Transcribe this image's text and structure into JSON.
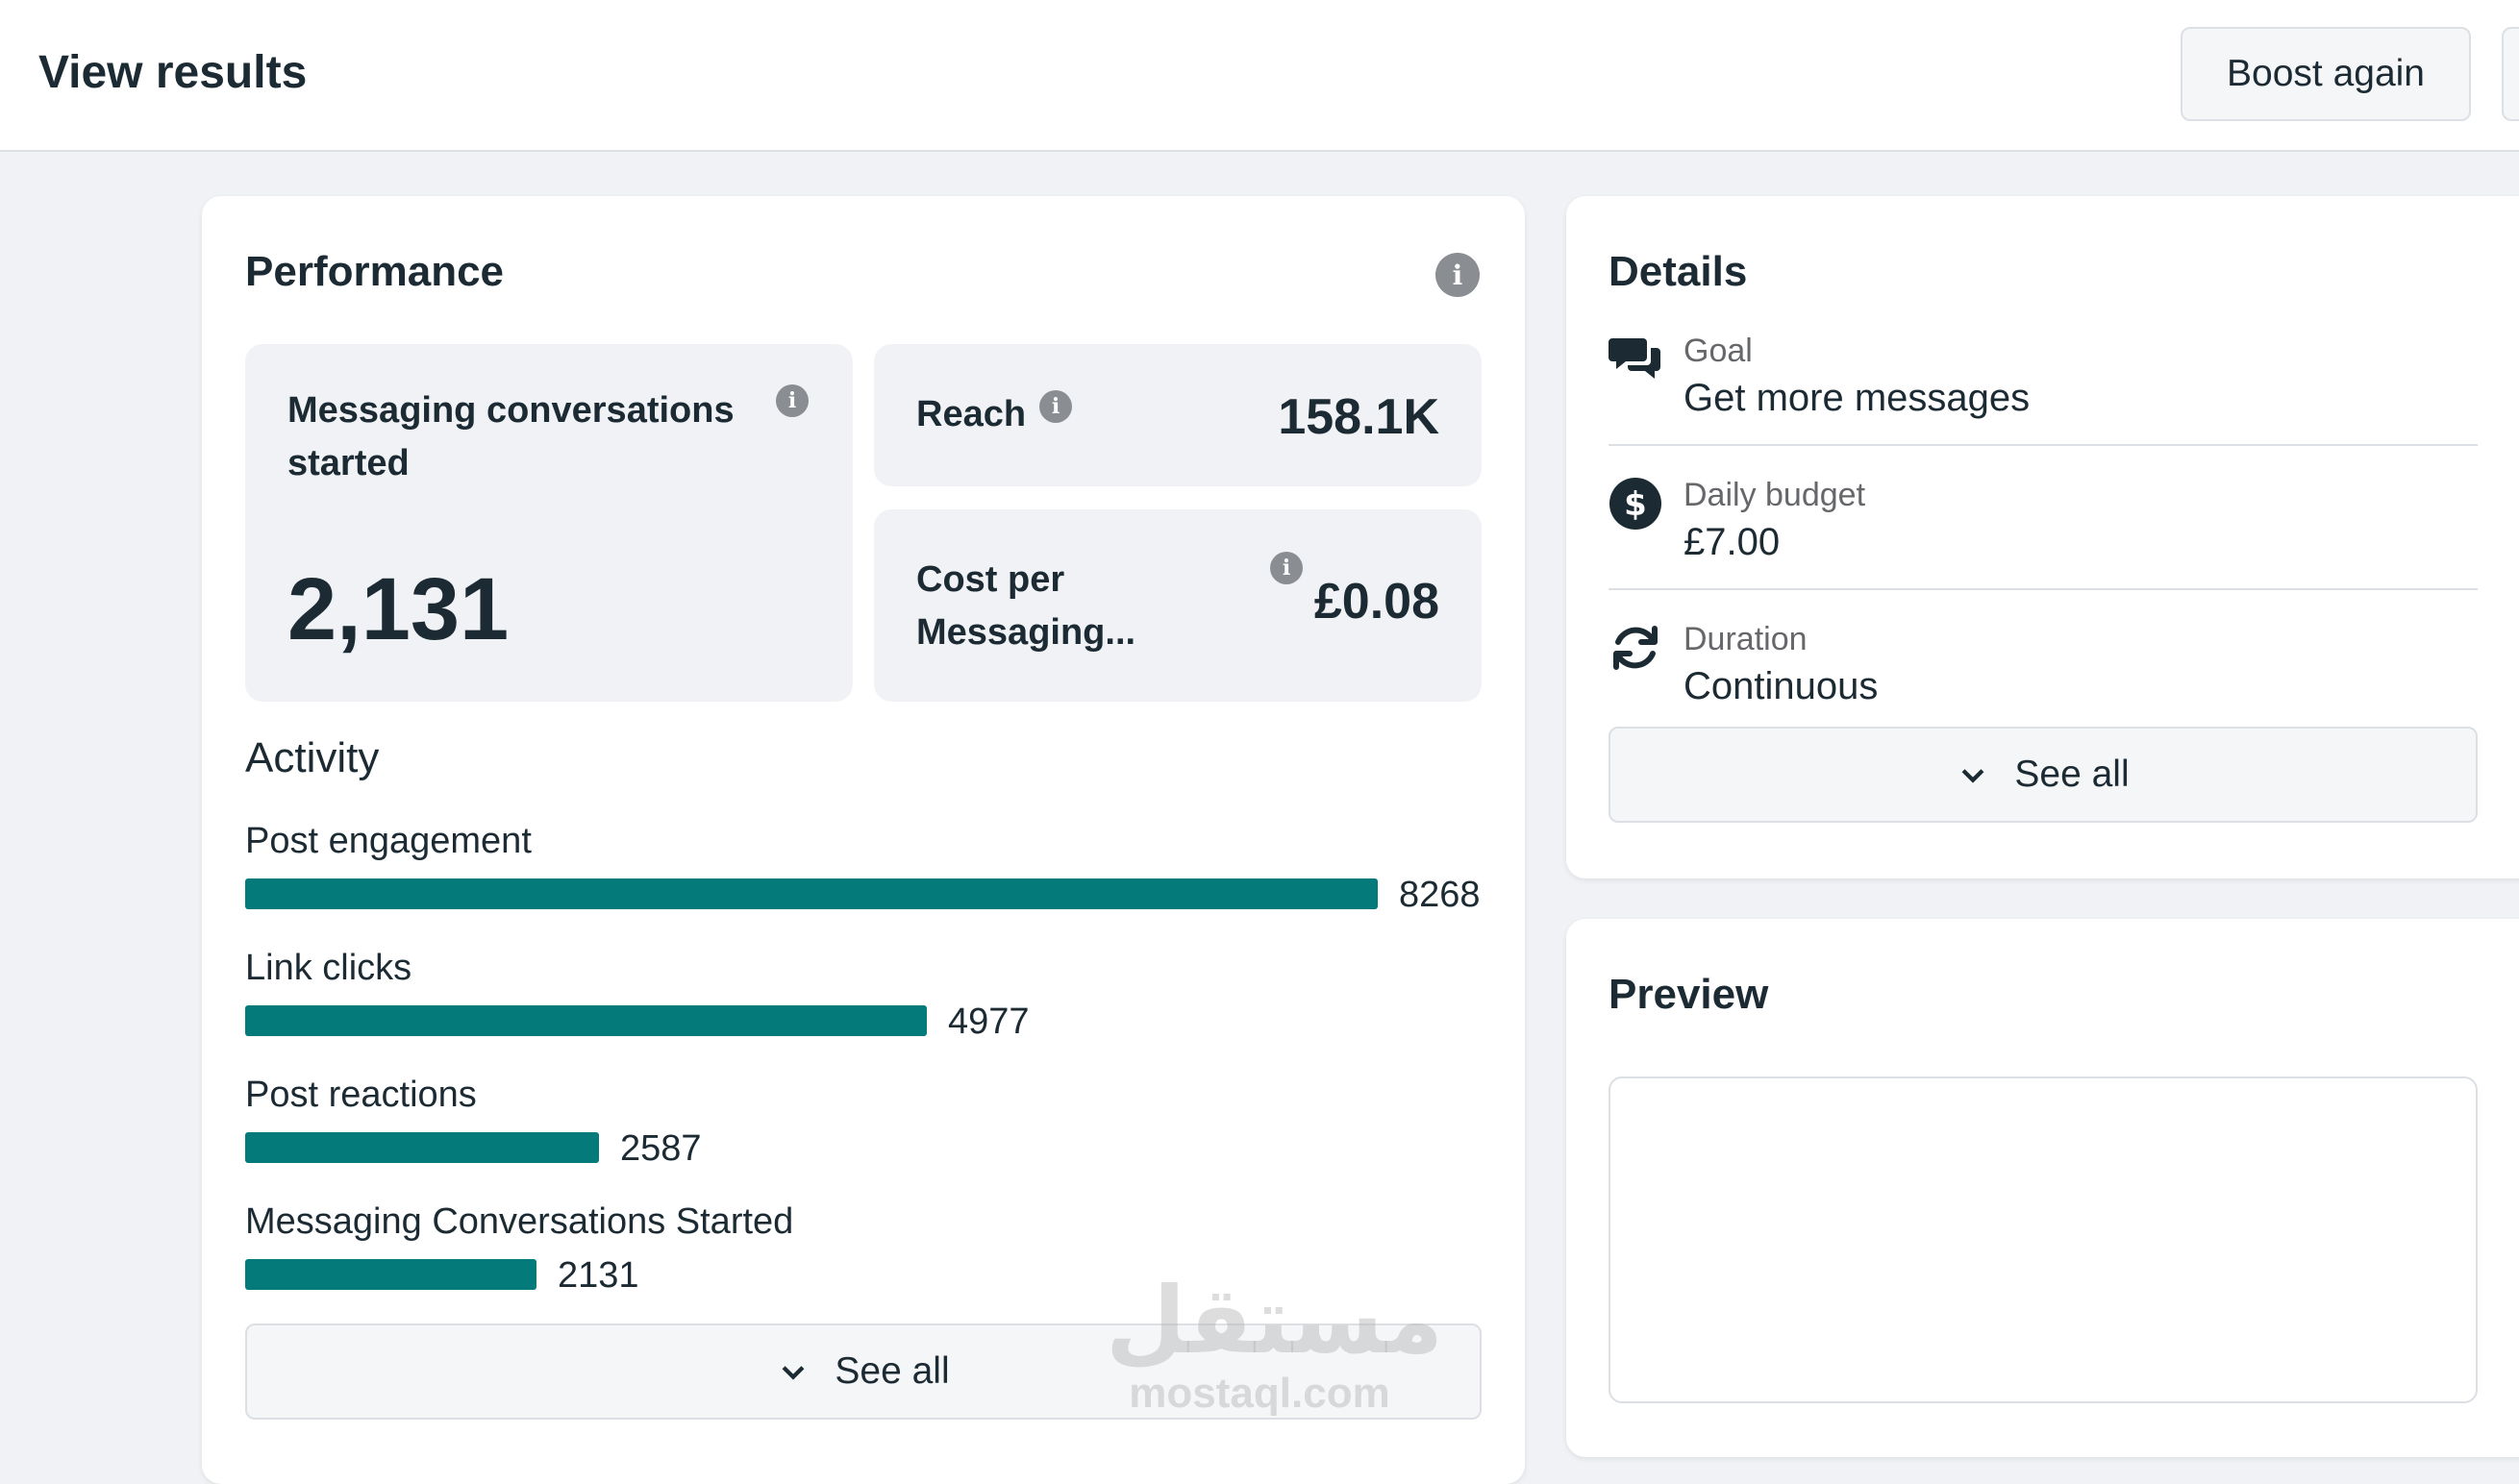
{
  "header": {
    "title": "View results",
    "boost_label": "Boost again"
  },
  "performance": {
    "title": "Performance",
    "metrics": {
      "messaging": {
        "label": "Messaging conversations started",
        "value": "2,131"
      },
      "reach": {
        "label": "Reach",
        "value": "158.1K"
      },
      "cost": {
        "label": "Cost per Messaging...",
        "value": "£0.08"
      }
    },
    "activity_title": "Activity",
    "activity": [
      {
        "label": "Post engagement",
        "value": "8268"
      },
      {
        "label": "Link clicks",
        "value": "4977"
      },
      {
        "label": "Post reactions",
        "value": "2587"
      },
      {
        "label": "Messaging Conversations Started",
        "value": "2131"
      }
    ],
    "see_all_label": "See all"
  },
  "details": {
    "title": "Details",
    "rows": [
      {
        "label": "Goal",
        "value": "Get more messages",
        "icon": "chat-bubbles-icon"
      },
      {
        "label": "Daily budget",
        "value": "£7.00",
        "icon": "dollar-circle-icon"
      },
      {
        "label": "Duration",
        "value": "Continuous",
        "icon": "refresh-icon"
      }
    ],
    "see_all_label": "See all"
  },
  "preview": {
    "title": "Preview"
  },
  "watermark": {
    "arabic": "مستقل",
    "latin": "mostaql.com"
  },
  "colors": {
    "bar": "#057a7a",
    "background": "#f0f2f5",
    "text": "#1c2b33"
  }
}
